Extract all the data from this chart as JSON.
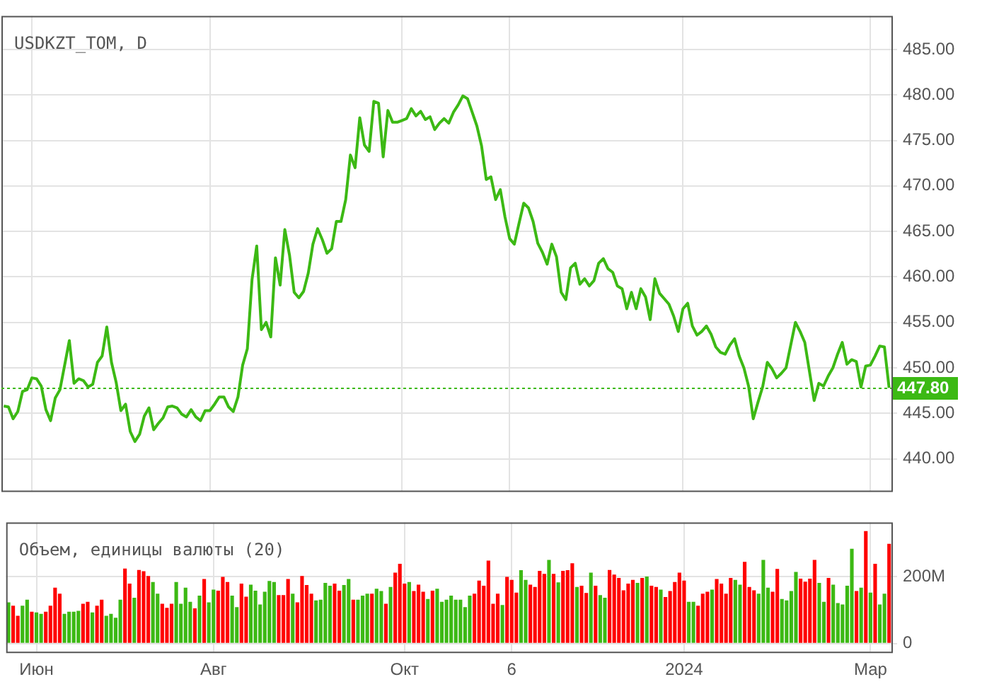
{
  "chart_data": [
    {
      "type": "line",
      "title": "USDKZT_TOM, D",
      "categories": [
        null,
        null,
        null,
        null,
        null,
        null,
        null,
        null,
        null,
        null,
        null,
        null,
        null,
        null,
        null,
        null,
        null,
        null,
        null,
        null,
        null,
        null,
        null,
        null,
        null,
        null,
        null,
        null,
        null,
        null,
        null,
        null,
        null,
        null,
        null,
        null,
        null,
        null,
        null,
        null,
        null,
        null,
        null,
        null,
        null,
        null,
        null,
        null,
        null,
        null,
        null,
        null,
        null,
        null,
        null,
        null,
        null,
        null,
        null,
        null,
        null,
        null,
        null,
        null,
        null,
        null,
        null,
        null,
        null,
        null,
        null,
        null,
        null,
        null,
        null,
        null,
        null,
        null,
        null,
        null,
        null,
        null,
        null,
        null,
        null,
        null,
        null,
        null,
        null,
        null,
        null,
        null,
        null,
        null,
        null,
        null,
        null,
        null,
        null,
        null,
        null,
        null,
        null,
        null,
        null,
        null,
        null,
        null,
        null,
        null,
        null,
        null,
        null,
        null,
        null,
        null,
        null,
        null,
        null,
        null,
        null,
        null,
        null,
        null,
        null,
        null,
        null,
        null,
        null,
        null,
        null,
        null,
        null,
        null,
        null,
        null,
        null,
        null,
        null,
        null,
        null,
        null,
        null,
        null,
        null,
        null,
        null,
        null,
        null,
        null,
        null,
        null,
        null,
        null,
        null,
        null,
        null,
        null,
        null,
        null,
        null,
        null,
        null,
        null,
        null,
        null,
        null,
        null,
        null,
        null,
        null,
        null,
        null,
        null,
        null,
        null,
        null,
        null,
        null,
        null,
        null,
        null,
        null,
        null,
        null,
        null,
        null,
        null,
        null,
        null
      ],
      "series": [
        {
          "color": "#3cb914",
          "values": [
            445.8,
            445.7,
            444.4,
            445.2,
            447.4,
            447.6,
            448.9,
            448.8,
            448.0,
            445.4,
            444.2,
            446.7,
            447.6,
            450.3,
            453.0,
            448.3,
            448.8,
            448.6,
            447.9,
            448.2,
            450.6,
            451.3,
            454.5,
            450.6,
            448.4,
            445.3,
            446.0,
            443.0,
            441.9,
            442.7,
            444.7,
            445.6,
            443.2,
            443.9,
            444.5,
            445.7,
            445.8,
            445.6,
            444.9,
            444.6,
            445.4,
            444.6,
            444.2,
            445.3,
            445.3,
            446.0,
            446.8,
            446.8,
            445.7,
            445.2,
            446.8,
            450.3,
            452.1,
            459.7,
            463.4,
            454.2,
            455.0,
            453.4,
            462.1,
            459.1,
            465.2,
            462.4,
            458.3,
            457.7,
            458.4,
            460.4,
            463.6,
            465.3,
            464.1,
            462.6,
            463.1,
            466.1,
            466.1,
            468.5,
            473.4,
            472.0,
            477.5,
            474.5,
            473.8,
            479.3,
            479.1,
            473.2,
            478.3,
            477.0,
            477.0,
            477.2,
            477.4,
            478.5,
            477.7,
            478.2,
            477.3,
            477.6,
            476.2,
            476.9,
            477.4,
            476.9,
            478.1,
            478.9,
            479.9,
            479.6,
            478.1,
            476.6,
            474.4,
            470.7,
            471.0,
            468.5,
            469.6,
            466.6,
            464.2,
            463.6,
            465.9,
            468.1,
            467.6,
            466.1,
            463.7,
            462.7,
            461.4,
            463.6,
            462.2,
            458.3,
            457.5,
            461.0,
            461.5,
            459.2,
            459.8,
            459.0,
            459.6,
            461.5,
            462.0,
            460.9,
            460.5,
            459.0,
            458.7,
            456.5,
            458.3,
            456.5,
            458.7,
            457.8,
            455.3,
            459.8,
            458.2,
            457.6,
            457.0,
            455.7,
            454.0,
            456.5,
            457.1,
            454.6,
            453.6,
            454.0,
            454.6,
            453.7,
            452.3,
            451.7,
            451.5,
            452.5,
            453.2,
            451.3,
            450.0,
            448.0,
            444.4,
            446.2,
            447.9,
            450.6,
            449.9,
            448.9,
            449.4,
            450.0,
            452.5,
            455.0,
            454.0,
            452.8,
            449.6,
            446.4,
            448.3,
            448.0,
            449.1,
            450.0,
            451.5,
            452.8,
            450.4,
            450.9,
            450.7,
            447.9,
            450.2,
            450.3,
            451.3,
            452.4,
            452.3,
            447.8
          ]
        }
      ],
      "ylim": [
        436.5,
        488.7
      ],
      "yticks": [
        {
          "value": 440,
          "label": "440.00"
        },
        {
          "value": 445,
          "label": "445.00"
        },
        {
          "value": 450,
          "label": "450.00"
        },
        {
          "value": 455,
          "label": "455.00"
        },
        {
          "value": 460,
          "label": "460.00"
        },
        {
          "value": 465,
          "label": "465.00"
        },
        {
          "value": 470,
          "label": "470.00"
        },
        {
          "value": 475,
          "label": "475.00"
        },
        {
          "value": 480,
          "label": "480.00"
        },
        {
          "value": 485,
          "label": "485.00"
        }
      ],
      "ref_lines": [
        {
          "axis": "y",
          "value": 447.8,
          "label": "447.80",
          "color": "#3cb914",
          "line_style": "dotted"
        }
      ],
      "grid": true,
      "marker": "none",
      "tick_labels": "y"
    },
    {
      "type": "bar",
      "title": "Объем, единицы валюты (20)",
      "categories": [
        null,
        null,
        null,
        null,
        null,
        null,
        "Июн",
        null,
        null,
        null,
        null,
        null,
        null,
        null,
        null,
        null,
        null,
        null,
        null,
        null,
        null,
        null,
        null,
        null,
        null,
        null,
        null,
        null,
        null,
        null,
        null,
        null,
        null,
        null,
        null,
        null,
        null,
        null,
        null,
        null,
        null,
        null,
        null,
        null,
        "Авг",
        null,
        null,
        null,
        null,
        null,
        null,
        null,
        null,
        null,
        null,
        null,
        null,
        null,
        null,
        null,
        null,
        null,
        null,
        null,
        null,
        null,
        null,
        null,
        null,
        null,
        null,
        null,
        null,
        null,
        null,
        null,
        null,
        null,
        null,
        null,
        null,
        null,
        null,
        null,
        null,
        "Окт",
        null,
        null,
        null,
        null,
        null,
        null,
        null,
        null,
        null,
        null,
        null,
        null,
        null,
        null,
        null,
        null,
        null,
        null,
        null,
        null,
        null,
        null,
        "6",
        null,
        null,
        null,
        null,
        null,
        null,
        null,
        null,
        null,
        null,
        null,
        null,
        null,
        null,
        null,
        null,
        null,
        null,
        null,
        null,
        null,
        null,
        null,
        null,
        null,
        null,
        null,
        null,
        null,
        null,
        null,
        null,
        null,
        null,
        null,
        null,
        "2024",
        null,
        null,
        null,
        null,
        null,
        null,
        null,
        null,
        null,
        null,
        null,
        null,
        null,
        null,
        null,
        null,
        null,
        null,
        null,
        null,
        null,
        null,
        null,
        null,
        null,
        null,
        null,
        null,
        null,
        null,
        null,
        null,
        null,
        null,
        null,
        null,
        null,
        null,
        null,
        "Мар",
        null,
        null,
        null,
        null
      ],
      "values": [
        123,
        113,
        83,
        113,
        131,
        95,
        93,
        89,
        95,
        113,
        167,
        149,
        89,
        95,
        95,
        98,
        119,
        125,
        93,
        113,
        131,
        83,
        89,
        77,
        131,
        224,
        179,
        137,
        220,
        216,
        202,
        184,
        149,
        119,
        107,
        119,
        184,
        119,
        167,
        125,
        105,
        143,
        193,
        123,
        161,
        158,
        199,
        184,
        143,
        109,
        179,
        140,
        176,
        158,
        117,
        155,
        187,
        184,
        145,
        145,
        193,
        149,
        123,
        202,
        175,
        149,
        129,
        131,
        181,
        173,
        179,
        158,
        175,
        193,
        131,
        131,
        143,
        149,
        149,
        164,
        157,
        119,
        169,
        212,
        238,
        179,
        184,
        157,
        176,
        155,
        133,
        158,
        164,
        125,
        131,
        143,
        131,
        131,
        109,
        143,
        149,
        188,
        173,
        248,
        119,
        149,
        115,
        199,
        190,
        152,
        219,
        190,
        176,
        169,
        217,
        208,
        250,
        208,
        183,
        217,
        219,
        240,
        169,
        173,
        151,
        212,
        173,
        145,
        137,
        220,
        206,
        196,
        159,
        179,
        190,
        181,
        196,
        200,
        173,
        169,
        161,
        139,
        157,
        184,
        212,
        188,
        125,
        125,
        113,
        149,
        155,
        161,
        193,
        179,
        149,
        196,
        190,
        176,
        244,
        169,
        159,
        149,
        250,
        167,
        155,
        223,
        133,
        129,
        157,
        214,
        194,
        185,
        194,
        250,
        181,
        125,
        196,
        176,
        121,
        117,
        173,
        283,
        157,
        167,
        336,
        152,
        238,
        117,
        149,
        298
      ],
      "colors": [
        "#3cb914",
        "#ff0000",
        "#ff0000",
        "#3cb914",
        "#3cb914",
        "#ff0000",
        "#3cb914",
        "#3cb914",
        "#ff0000",
        "#ff0000",
        "#ff0000",
        "#ff0000",
        "#3cb914",
        "#3cb914",
        "#3cb914",
        "#3cb914",
        "#ff0000",
        "#ff0000",
        "#3cb914",
        "#ff0000",
        "#ff0000",
        "#3cb914",
        "#3cb914",
        "#3cb914",
        "#3cb914",
        "#ff0000",
        "#ff0000",
        "#3cb914",
        "#ff0000",
        "#ff0000",
        "#ff0000",
        "#3cb914",
        "#3cb914",
        "#ff0000",
        "#ff0000",
        "#ff0000",
        "#3cb914",
        "#3cb914",
        "#3cb914",
        "#3cb914",
        "#ff0000",
        "#3cb914",
        "#ff0000",
        "#3cb914",
        "#3cb914",
        "#ff0000",
        "#ff0000",
        "#ff0000",
        "#3cb914",
        "#3cb914",
        "#ff0000",
        "#ff0000",
        "#3cb914",
        "#3cb914",
        "#3cb914",
        "#3cb914",
        "#3cb914",
        "#3cb914",
        "#ff0000",
        "#ff0000",
        "#ff0000",
        "#3cb914",
        "#ff0000",
        "#ff0000",
        "#ff0000",
        "#ff0000",
        "#3cb914",
        "#3cb914",
        "#3cb914",
        "#3cb914",
        "#ff0000",
        "#ff0000",
        "#3cb914",
        "#3cb914",
        "#ff0000",
        "#3cb914",
        "#3cb914",
        "#3cb914",
        "#ff0000",
        "#3cb914",
        "#3cb914",
        "#ff0000",
        "#3cb914",
        "#ff0000",
        "#ff0000",
        "#ff0000",
        "#3cb914",
        "#ff0000",
        "#ff0000",
        "#ff0000",
        "#3cb914",
        "#ff0000",
        "#3cb914",
        "#3cb914",
        "#3cb914",
        "#3cb914",
        "#3cb914",
        "#3cb914",
        "#3cb914",
        "#3cb914",
        "#ff0000",
        "#ff0000",
        "#ff0000",
        "#ff0000",
        "#ff0000",
        "#ff0000",
        "#3cb914",
        "#ff0000",
        "#ff0000",
        "#ff0000",
        "#3cb914",
        "#3cb914",
        "#ff0000",
        "#ff0000",
        "#ff0000",
        "#ff0000",
        "#3cb914",
        "#ff0000",
        "#3cb914",
        "#ff0000",
        "#ff0000",
        "#ff0000",
        "#3cb914",
        "#ff0000",
        "#ff0000",
        "#3cb914",
        "#ff0000",
        "#3cb914",
        "#3cb914",
        "#ff0000",
        "#ff0000",
        "#ff0000",
        "#ff0000",
        "#ff0000",
        "#ff0000",
        "#3cb914",
        "#ff0000",
        "#3cb914",
        "#ff0000",
        "#ff0000",
        "#3cb914",
        "#ff0000",
        "#ff0000",
        "#ff0000",
        "#ff0000",
        "#ff0000",
        "#3cb914",
        "#3cb914",
        "#ff0000",
        "#ff0000",
        "#ff0000",
        "#3cb914",
        "#ff0000",
        "#ff0000",
        "#ff0000",
        "#ff0000",
        "#3cb914",
        "#3cb914",
        "#ff0000",
        "#ff0000",
        "#ff0000",
        "#3cb914",
        "#3cb914",
        "#3cb914",
        "#ff0000",
        "#ff0000",
        "#3cb914",
        "#3cb914",
        "#3cb914",
        "#3cb914",
        "#ff0000",
        "#ff0000",
        "#ff0000",
        "#ff0000",
        "#3cb914",
        "#3cb914",
        "#ff0000",
        "#3cb914",
        "#3cb914",
        "#3cb914",
        "#3cb914",
        "#3cb914",
        "#ff0000",
        "#3cb914",
        "#ff0000",
        "#3cb914",
        "#ff0000",
        "#3cb914",
        "#3cb914",
        "#ff0000"
      ],
      "ylim": [
        -24,
        362
      ],
      "yticks": [
        0,
        {
          "value": 200,
          "label": "200M"
        }
      ],
      "grid": true
    }
  ]
}
